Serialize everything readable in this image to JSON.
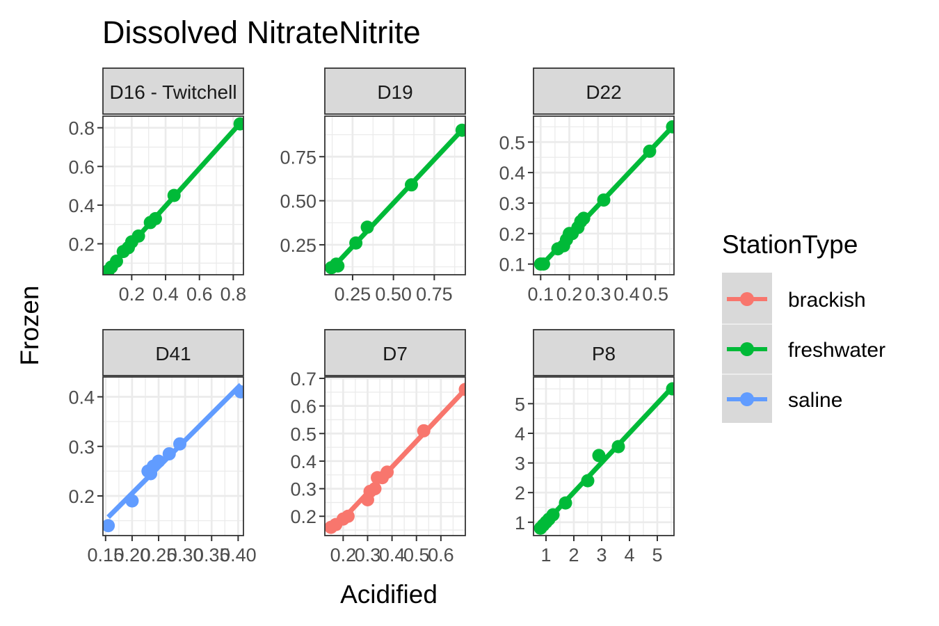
{
  "chart_data": {
    "type": "scatter",
    "title": "Dissolved NitrateNitrite",
    "xlabel": "Acidified",
    "ylabel": "Frozen",
    "grid": true,
    "legend": {
      "title": "StationType",
      "placement": "right",
      "entries": [
        {
          "name": "brackish",
          "color": "#F8766D"
        },
        {
          "name": "freshwater",
          "color": "#00BA38"
        },
        {
          "name": "saline",
          "color": "#619CFF"
        }
      ]
    },
    "panels": [
      {
        "label": "D16 - Twitchell",
        "station_type": "freshwater",
        "xlim": [
          0.03,
          0.86
        ],
        "ylim": [
          0.04,
          0.86
        ],
        "x_ticks": [
          0.2,
          0.4,
          0.6,
          0.8
        ],
        "x_tick_labels": [
          "0.2",
          "0.4",
          "0.6",
          "0.8"
        ],
        "y_ticks": [
          0.2,
          0.4,
          0.6,
          0.8
        ],
        "y_tick_labels": [
          "0.2",
          "0.4",
          "0.6",
          "0.8"
        ],
        "points": [
          [
            0.06,
            0.06
          ],
          [
            0.08,
            0.08
          ],
          [
            0.11,
            0.11
          ],
          [
            0.15,
            0.16
          ],
          [
            0.18,
            0.18
          ],
          [
            0.2,
            0.21
          ],
          [
            0.24,
            0.24
          ],
          [
            0.31,
            0.31
          ],
          [
            0.34,
            0.33
          ],
          [
            0.45,
            0.45
          ],
          [
            0.84,
            0.82
          ]
        ]
      },
      {
        "label": "D19",
        "station_type": "freshwater",
        "xlim": [
          0.08,
          0.94
        ],
        "ylim": [
          0.08,
          0.98
        ],
        "x_ticks": [
          0.25,
          0.5,
          0.75
        ],
        "x_tick_labels": [
          "0.25",
          "0.50",
          "0.75"
        ],
        "y_ticks": [
          0.25,
          0.5,
          0.75
        ],
        "y_tick_labels": [
          "0.25",
          "0.50",
          "0.75"
        ],
        "points": [
          [
            0.12,
            0.12
          ],
          [
            0.15,
            0.14
          ],
          [
            0.16,
            0.13
          ],
          [
            0.27,
            0.26
          ],
          [
            0.34,
            0.35
          ],
          [
            0.61,
            0.59
          ],
          [
            0.92,
            0.9
          ]
        ]
      },
      {
        "label": "D22",
        "station_type": "freshwater",
        "xlim": [
          0.075,
          0.565
        ],
        "ylim": [
          0.065,
          0.585
        ],
        "x_ticks": [
          0.1,
          0.2,
          0.3,
          0.4,
          0.5
        ],
        "x_tick_labels": [
          "0.1",
          "0.2",
          "0.3",
          "0.4",
          "0.5"
        ],
        "y_ticks": [
          0.1,
          0.2,
          0.3,
          0.4,
          0.5
        ],
        "y_tick_labels": [
          "0.1",
          "0.2",
          "0.3",
          "0.4",
          "0.5"
        ],
        "points": [
          [
            0.1,
            0.1
          ],
          [
            0.11,
            0.1
          ],
          [
            0.16,
            0.15
          ],
          [
            0.18,
            0.16
          ],
          [
            0.19,
            0.18
          ],
          [
            0.2,
            0.2
          ],
          [
            0.21,
            0.2
          ],
          [
            0.23,
            0.22
          ],
          [
            0.24,
            0.24
          ],
          [
            0.25,
            0.25
          ],
          [
            0.32,
            0.31
          ],
          [
            0.48,
            0.47
          ],
          [
            0.56,
            0.55
          ]
        ]
      },
      {
        "label": "D41",
        "station_type": "saline",
        "xlim": [
          0.145,
          0.41
        ],
        "ylim": [
          0.12,
          0.44
        ],
        "x_ticks": [
          0.15,
          0.2,
          0.25,
          0.3,
          0.35,
          0.4
        ],
        "x_tick_labels": [
          "0.15",
          "0.20",
          "0.25",
          "0.30",
          "0.35",
          "0.40"
        ],
        "y_ticks": [
          0.2,
          0.3,
          0.4
        ],
        "y_tick_labels": [
          "0.2",
          "0.3",
          "0.4"
        ],
        "points": [
          [
            0.155,
            0.14
          ],
          [
            0.2,
            0.19
          ],
          [
            0.23,
            0.25
          ],
          [
            0.235,
            0.245
          ],
          [
            0.24,
            0.26
          ],
          [
            0.25,
            0.27
          ],
          [
            0.27,
            0.285
          ],
          [
            0.29,
            0.305
          ],
          [
            0.405,
            0.41
          ]
        ]
      },
      {
        "label": "D7",
        "station_type": "brackish",
        "xlim": [
          0.125,
          0.7
        ],
        "ylim": [
          0.13,
          0.705
        ],
        "x_ticks": [
          0.2,
          0.3,
          0.4,
          0.5,
          0.6
        ],
        "x_tick_labels": [
          "0.2",
          "0.3",
          "0.4",
          "0.5",
          "0.6"
        ],
        "y_ticks": [
          0.2,
          0.3,
          0.4,
          0.5,
          0.6,
          0.7
        ],
        "y_tick_labels": [
          "0.2",
          "0.3",
          "0.4",
          "0.5",
          "0.6",
          "0.7"
        ],
        "points": [
          [
            0.15,
            0.16
          ],
          [
            0.17,
            0.17
          ],
          [
            0.2,
            0.19
          ],
          [
            0.22,
            0.2
          ],
          [
            0.3,
            0.26
          ],
          [
            0.31,
            0.29
          ],
          [
            0.33,
            0.3
          ],
          [
            0.34,
            0.34
          ],
          [
            0.36,
            0.34
          ],
          [
            0.38,
            0.36
          ],
          [
            0.53,
            0.51
          ],
          [
            0.7,
            0.66
          ]
        ]
      },
      {
        "label": "P8",
        "station_type": "freshwater",
        "xlim": [
          0.55,
          5.6
        ],
        "ylim": [
          0.55,
          5.9
        ],
        "x_ticks": [
          1,
          2,
          3,
          4,
          5
        ],
        "x_tick_labels": [
          "1",
          "2",
          "3",
          "4",
          "5"
        ],
        "y_ticks": [
          1,
          2,
          3,
          4,
          5
        ],
        "y_tick_labels": [
          "1",
          "2",
          "3",
          "4",
          "5"
        ],
        "points": [
          [
            0.8,
            0.8
          ],
          [
            0.9,
            0.9
          ],
          [
            1.0,
            1.0
          ],
          [
            1.1,
            1.1
          ],
          [
            1.25,
            1.25
          ],
          [
            1.7,
            1.65
          ],
          [
            2.5,
            2.4
          ],
          [
            2.9,
            3.25
          ],
          [
            3.6,
            3.55
          ],
          [
            5.55,
            5.5
          ]
        ]
      }
    ]
  }
}
